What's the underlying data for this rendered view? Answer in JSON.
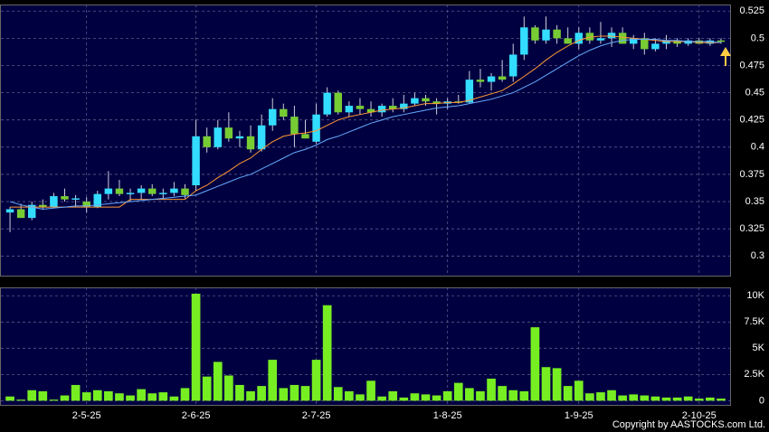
{
  "chart_data": [
    {
      "type": "candlestick",
      "open": [
        0.34,
        0.343,
        0.335,
        0.347,
        0.345,
        0.355,
        0.352,
        0.35,
        0.345,
        0.357,
        0.362,
        0.357,
        0.358,
        0.362,
        0.357,
        0.358,
        0.362,
        0.365,
        0.41,
        0.4,
        0.418,
        0.408,
        0.41,
        0.398,
        0.42,
        0.435,
        0.428,
        0.412,
        0.405,
        0.43,
        0.45,
        0.432,
        0.438,
        0.435,
        0.432,
        0.438,
        0.435,
        0.44,
        0.445,
        0.442,
        0.44,
        0.442,
        0.441,
        0.462,
        0.46,
        0.465,
        0.465,
        0.485,
        0.51,
        0.498,
        0.508,
        0.5,
        0.495,
        0.505,
        0.498,
        0.5,
        0.505,
        0.495,
        0.5,
        0.49,
        0.495,
        0.498,
        0.495,
        0.498,
        0.495,
        0.498
      ],
      "high": [
        0.345,
        0.348,
        0.35,
        0.352,
        0.358,
        0.362,
        0.356,
        0.354,
        0.36,
        0.378,
        0.37,
        0.362,
        0.365,
        0.366,
        0.362,
        0.368,
        0.366,
        0.425,
        0.418,
        0.425,
        0.432,
        0.415,
        0.42,
        0.43,
        0.445,
        0.44,
        0.438,
        0.425,
        0.44,
        0.455,
        0.452,
        0.442,
        0.445,
        0.442,
        0.44,
        0.445,
        0.448,
        0.45,
        0.448,
        0.445,
        0.445,
        0.448,
        0.47,
        0.472,
        0.468,
        0.48,
        0.495,
        0.52,
        0.512,
        0.52,
        0.512,
        0.51,
        0.51,
        0.51,
        0.515,
        0.51,
        0.51,
        0.503,
        0.505,
        0.5,
        0.503,
        0.5,
        0.5,
        0.5,
        0.5,
        0.5
      ],
      "low": [
        0.322,
        0.335,
        0.333,
        0.343,
        0.344,
        0.35,
        0.345,
        0.34,
        0.344,
        0.352,
        0.355,
        0.35,
        0.352,
        0.355,
        0.352,
        0.355,
        0.353,
        0.36,
        0.395,
        0.398,
        0.405,
        0.4,
        0.395,
        0.396,
        0.415,
        0.425,
        0.4,
        0.408,
        0.403,
        0.428,
        0.43,
        0.428,
        0.43,
        0.428,
        0.428,
        0.432,
        0.432,
        0.438,
        0.438,
        0.43,
        0.435,
        0.44,
        0.44,
        0.455,
        0.452,
        0.46,
        0.46,
        0.48,
        0.495,
        0.495,
        0.495,
        0.495,
        0.49,
        0.495,
        0.495,
        0.492,
        0.495,
        0.49,
        0.485,
        0.488,
        0.49,
        0.492,
        0.493,
        0.495,
        0.493,
        0.495
      ],
      "close": [
        0.343,
        0.335,
        0.347,
        0.345,
        0.355,
        0.352,
        0.353,
        0.345,
        0.357,
        0.362,
        0.357,
        0.358,
        0.362,
        0.357,
        0.358,
        0.362,
        0.356,
        0.41,
        0.4,
        0.418,
        0.408,
        0.41,
        0.398,
        0.42,
        0.435,
        0.428,
        0.412,
        0.408,
        0.43,
        0.45,
        0.432,
        0.438,
        0.435,
        0.432,
        0.438,
        0.435,
        0.44,
        0.445,
        0.442,
        0.44,
        0.442,
        0.441,
        0.462,
        0.46,
        0.465,
        0.462,
        0.485,
        0.51,
        0.498,
        0.508,
        0.5,
        0.495,
        0.505,
        0.498,
        0.5,
        0.505,
        0.495,
        0.5,
        0.49,
        0.495,
        0.498,
        0.495,
        0.498,
        0.495,
        0.498,
        0.497
      ],
      "up_color": "#33ddff",
      "down_color": "#77cc33",
      "series": [
        {
          "color": "#ff9933",
          "values": [
            0.345,
            0.345,
            0.345,
            0.345,
            0.345,
            0.345,
            0.345,
            0.345,
            0.345,
            0.345,
            0.345,
            0.352,
            0.352,
            0.352,
            0.352,
            0.352,
            0.352,
            0.36,
            0.365,
            0.372,
            0.378,
            0.385,
            0.39,
            0.398,
            0.405,
            0.41,
            0.412,
            0.413,
            0.415,
            0.42,
            0.425,
            0.428,
            0.43,
            0.432,
            0.434,
            0.435,
            0.436,
            0.438,
            0.44,
            0.44,
            0.441,
            0.441,
            0.443,
            0.446,
            0.449,
            0.452,
            0.458,
            0.465,
            0.472,
            0.48,
            0.487,
            0.493,
            0.498,
            0.501,
            0.502,
            0.502,
            0.501,
            0.5,
            0.499,
            0.498,
            0.497,
            0.497,
            0.497,
            0.496,
            0.496,
            0.496
          ]
        },
        {
          "color": "#66aaff",
          "values": [
            0.35,
            0.347,
            0.345,
            0.343,
            0.344,
            0.345,
            0.346,
            0.346,
            0.347,
            0.348,
            0.349,
            0.35,
            0.351,
            0.352,
            0.353,
            0.354,
            0.355,
            0.356,
            0.36,
            0.364,
            0.368,
            0.372,
            0.375,
            0.38,
            0.385,
            0.39,
            0.395,
            0.398,
            0.402,
            0.407,
            0.41,
            0.414,
            0.418,
            0.422,
            0.425,
            0.428,
            0.43,
            0.432,
            0.434,
            0.436,
            0.437,
            0.438,
            0.44,
            0.442,
            0.444,
            0.447,
            0.45,
            0.455,
            0.46,
            0.466,
            0.472,
            0.478,
            0.484,
            0.489,
            0.493,
            0.496,
            0.498,
            0.499,
            0.499,
            0.499,
            0.498,
            0.498,
            0.497,
            0.497,
            0.497,
            0.496
          ]
        }
      ],
      "ylim": [
        0.282,
        0.531
      ],
      "yticks": [
        0.3,
        0.325,
        0.35,
        0.375,
        0.4,
        0.425,
        0.45,
        0.475,
        0.5,
        0.525
      ],
      "grid": true
    },
    {
      "type": "bar",
      "categories": [
        null,
        null,
        null,
        null,
        null,
        null,
        null,
        "2-5-25",
        null,
        null,
        null,
        null,
        null,
        null,
        null,
        null,
        null,
        "2-6-25",
        null,
        null,
        null,
        null,
        null,
        null,
        null,
        null,
        null,
        null,
        "2-7-25",
        null,
        null,
        null,
        null,
        null,
        null,
        null,
        null,
        null,
        null,
        null,
        "1-8-25",
        null,
        null,
        null,
        null,
        null,
        null,
        null,
        null,
        null,
        null,
        null,
        "1-9-25",
        null,
        null,
        null,
        null,
        null,
        null,
        null,
        null,
        null,
        null,
        "2-10-25",
        null,
        null
      ],
      "values": [
        400,
        100,
        1000,
        900,
        100,
        500,
        1500,
        800,
        1000,
        900,
        700,
        500,
        1100,
        700,
        800,
        400,
        1200,
        10200,
        2300,
        3700,
        2400,
        1500,
        900,
        1400,
        3900,
        1200,
        1500,
        1400,
        3900,
        9100,
        1300,
        900,
        600,
        1900,
        400,
        900,
        300,
        700,
        600,
        500,
        900,
        1700,
        1200,
        900,
        2100,
        1400,
        1000,
        900,
        7000,
        3200,
        3100,
        1400,
        1900,
        700,
        800,
        1000,
        500,
        600,
        500,
        400,
        300,
        300,
        400,
        200,
        300,
        200
      ],
      "color": "#77ee22",
      "ylim": [
        -400,
        10800
      ],
      "yticks": [
        0,
        {
          "value": 2500,
          "label": "2.5K"
        },
        {
          "value": 5000,
          "label": "5K"
        },
        {
          "value": 7500,
          "label": "7.5K"
        },
        {
          "value": 10000,
          "label": "10K"
        }
      ],
      "grid": true
    }
  ],
  "footer": "Copyright by AASTOCKS.com Ltd."
}
